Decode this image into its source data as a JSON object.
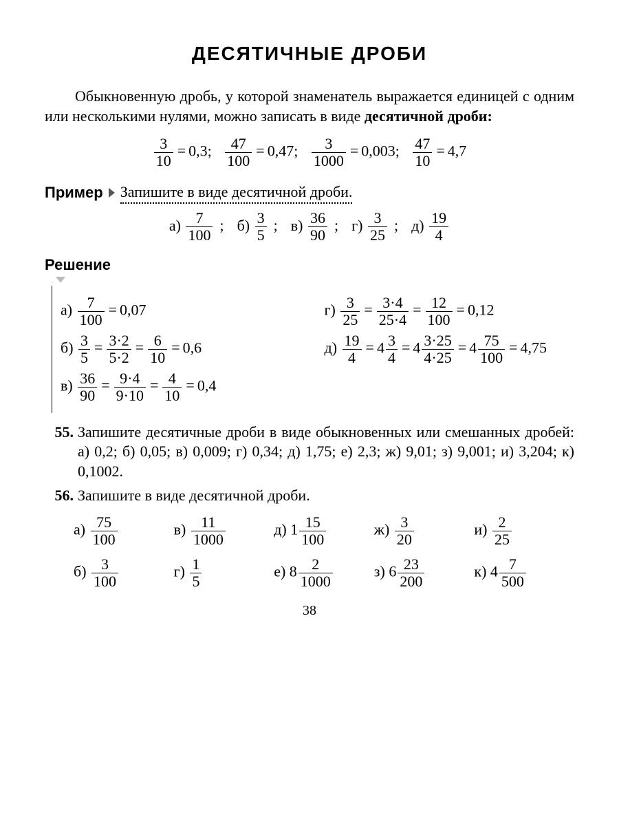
{
  "title": "ДЕСЯТИЧНЫЕ ДРОБИ",
  "intro_pre": "Обыкновенную дробь, у которой знаменатель выражается единицей с одним или несколькими нулями, можно записать в виде ",
  "intro_bold": "десятичной дроби:",
  "top_eq": [
    {
      "n": "3",
      "d": "10",
      "v": "0,3"
    },
    {
      "n": "47",
      "d": "100",
      "v": "0,47"
    },
    {
      "n": "3",
      "d": "1000",
      "v": "0,003"
    },
    {
      "n": "47",
      "d": "10",
      "v": "4,7"
    }
  ],
  "example_label": "Пример",
  "example_text": "Запишите в виде десятичной дроби.",
  "example_items": [
    {
      "l": "а)",
      "n": "7",
      "d": "100"
    },
    {
      "l": "б)",
      "n": "3",
      "d": "5"
    },
    {
      "l": "в)",
      "n": "36",
      "d": "90"
    },
    {
      "l": "г)",
      "n": "3",
      "d": "25"
    },
    {
      "l": "д)",
      "n": "19",
      "d": "4"
    }
  ],
  "solution_label": "Решение",
  "sol_left": [
    {
      "l": "а)",
      "steps": [
        {
          "n": "7",
          "d": "100"
        }
      ],
      "ans": "0,07"
    },
    {
      "l": "б)",
      "steps": [
        {
          "n": "3",
          "d": "5"
        },
        {
          "n": "3·2",
          "d": "5·2"
        },
        {
          "n": "6",
          "d": "10"
        }
      ],
      "ans": "0,6"
    },
    {
      "l": "в)",
      "steps": [
        {
          "n": "36",
          "d": "90"
        },
        {
          "n": "9·4",
          "d": "9·10"
        },
        {
          "n": "4",
          "d": "10"
        }
      ],
      "ans": "0,4"
    }
  ],
  "sol_right": [
    {
      "l": "г)",
      "steps": [
        {
          "n": "3",
          "d": "25"
        },
        {
          "n": "3·4",
          "d": "25·4"
        },
        {
          "n": "12",
          "d": "100"
        }
      ],
      "ans": "0,12"
    },
    {
      "l": "д)",
      "raw": true
    }
  ],
  "sol_d_parts": {
    "f1": {
      "n": "19",
      "d": "4"
    },
    "m2_w": "4",
    "m2_n": "3",
    "m2_d": "4",
    "m3_w": "4",
    "m3_n": "3·25",
    "m3_d": "4·25",
    "m4_w": "4",
    "m4_n": "75",
    "m4_d": "100",
    "ans": "4,75"
  },
  "p55": {
    "num": "55.",
    "text": "Запишите десятичные дроби в виде обыкновенных или смешанных дробей: а) 0,2; б) 0,05; в) 0,009; г) 0,34; д) 1,75; е) 2,3; ж) 9,01; з) 9,001; и) 3,204; к) 0,1002."
  },
  "p56": {
    "num": "56.",
    "text": "Запишите в виде десятичной дроби."
  },
  "p56_items": [
    {
      "l": "а)",
      "w": "",
      "n": "75",
      "d": "100"
    },
    {
      "l": "в)",
      "w": "",
      "n": "11",
      "d": "1000"
    },
    {
      "l": "д)",
      "w": "1",
      "n": "15",
      "d": "100"
    },
    {
      "l": "ж)",
      "w": "",
      "n": "3",
      "d": "20"
    },
    {
      "l": "и)",
      "w": "",
      "n": "2",
      "d": "25"
    },
    {
      "l": "б)",
      "w": "",
      "n": "3",
      "d": "100"
    },
    {
      "l": "г)",
      "w": "",
      "n": "1",
      "d": "5"
    },
    {
      "l": "е)",
      "w": "8",
      "n": "2",
      "d": "1000"
    },
    {
      "l": "з)",
      "w": "6",
      "n": "23",
      "d": "200"
    },
    {
      "l": "к)",
      "w": "4",
      "n": "7",
      "d": "500"
    }
  ],
  "pagenum": "38"
}
